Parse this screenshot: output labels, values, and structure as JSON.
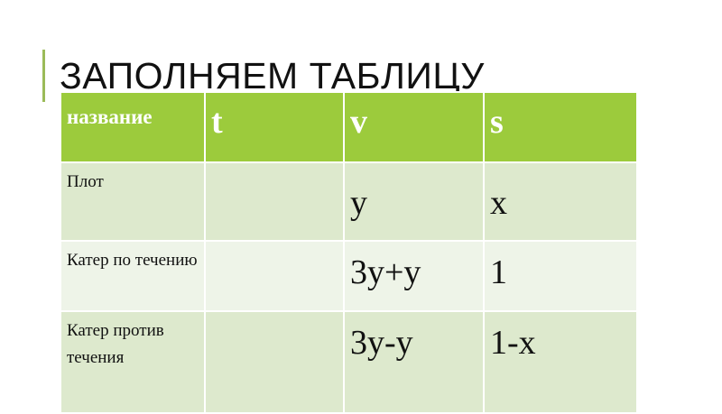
{
  "title": "ЗАПОЛНЯЕМ ТАБЛИЦУ",
  "colors": {
    "accent": "#9bbb59",
    "header": "#9ccb3c",
    "row_dark": "#dde9cd",
    "row_light": "#eef4e8"
  },
  "table": {
    "headers": [
      "название",
      "t",
      "v",
      "s"
    ],
    "rows": [
      [
        "Плот",
        "",
        "y",
        "x"
      ],
      [
        "Катер по течению",
        "",
        "3y+y",
        "1"
      ],
      [
        "Катер против течения",
        "",
        "3y-y",
        "1-x"
      ]
    ]
  }
}
